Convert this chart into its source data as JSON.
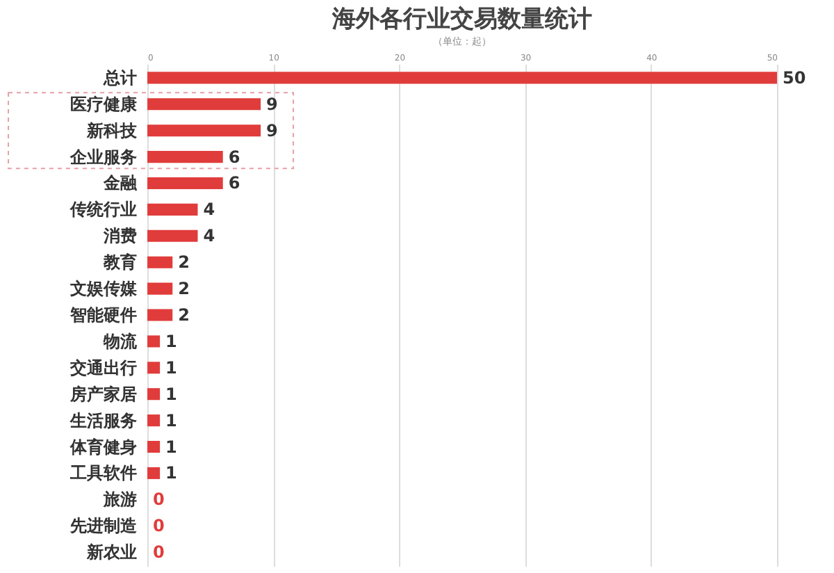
{
  "chart_data": {
    "type": "bar",
    "orientation": "horizontal",
    "title": "海外各行业交易数量统计",
    "subtitle": "（单位：起）",
    "categories": [
      "总计",
      "医疗健康",
      "新科技",
      "企业服务",
      "金融",
      "传统行业",
      "消费",
      "教育",
      "文娱传媒",
      "智能硬件",
      "物流",
      "交通出行",
      "房产家居",
      "生活服务",
      "体育健身",
      "工具软件",
      "旅游",
      "先进制造",
      "新农业"
    ],
    "values": [
      50,
      9,
      9,
      6,
      6,
      4,
      4,
      2,
      2,
      2,
      1,
      1,
      1,
      1,
      1,
      1,
      0,
      0,
      0
    ],
    "color": "#e03c3c",
    "xlim": [
      0,
      50
    ],
    "xticks": [
      0,
      10,
      20,
      30,
      40,
      50
    ],
    "grid": "x",
    "data_labels": true
  }
}
